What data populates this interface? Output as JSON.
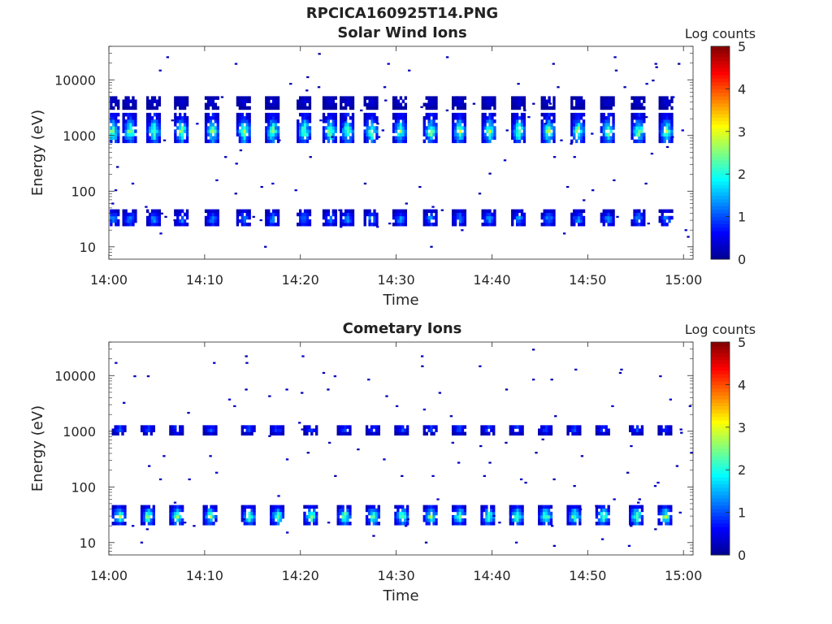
{
  "titles": {
    "file": "RPCICA160925T14.PNG",
    "panel1": "Solar Wind Ions",
    "panel2": "Cometary Ions"
  },
  "colors": {
    "background": "#ffffff",
    "axis": "#262626",
    "colormap": [
      "#00008f",
      "#0000ff",
      "#0080ff",
      "#00ffff",
      "#80ff80",
      "#ffff00",
      "#ff8000",
      "#ff0000",
      "#800000"
    ]
  },
  "chart_data": [
    {
      "type": "heatmap",
      "title": "Solar Wind Ions",
      "xlabel": "Time",
      "ylabel": "Energy (eV)",
      "xlim": [
        "14:00",
        "15:01"
      ],
      "ylim": [
        6,
        40000
      ],
      "yscale": "log",
      "xticks": [
        "14:00",
        "14:10",
        "14:20",
        "14:30",
        "14:40",
        "14:50",
        "15:00"
      ],
      "yticks": [
        "10",
        "100",
        "1000",
        "10000"
      ],
      "colorbar": {
        "label": "Log counts",
        "range": [
          0,
          5
        ],
        "ticks": [
          "0",
          "1",
          "2",
          "3",
          "4",
          "5"
        ]
      },
      "band_centers_minutes": [
        0.3,
        2.1,
        4.6,
        7.5,
        10.7,
        14.0,
        17.0,
        20.3,
        23.0,
        24.8,
        27.3,
        30.3,
        33.5,
        36.5,
        39.6,
        42.7,
        45.8,
        48.9,
        52.0,
        55.2,
        58.1
      ],
      "bands": [
        {
          "name": "main",
          "energy_range_eV": [
            700,
            2500
          ],
          "peak_energy_eV": 1200,
          "peak_log_counts": 2.8
        },
        {
          "name": "low",
          "energy_range_eV": [
            23,
            45
          ],
          "peak_energy_eV": 32,
          "peak_log_counts": 1.6
        },
        {
          "name": "upper",
          "energy_range_eV": [
            3000,
            5000
          ],
          "peak_energy_eV": 4000,
          "peak_log_counts": 0.5
        }
      ],
      "sparse_level_log_counts": 0.1
    },
    {
      "type": "heatmap",
      "title": "Cometary Ions",
      "xlabel": "Time",
      "ylabel": "Energy (eV)",
      "xlim": [
        "14:00",
        "15:01"
      ],
      "ylim": [
        6,
        40000
      ],
      "yscale": "log",
      "xticks": [
        "14:00",
        "14:10",
        "14:20",
        "14:30",
        "14:40",
        "14:50",
        "15:00"
      ],
      "yticks": [
        "10",
        "100",
        "1000",
        "10000"
      ],
      "colorbar": {
        "label": "Log counts",
        "range": [
          0,
          5
        ],
        "ticks": [
          "0",
          "1",
          "2",
          "3",
          "4",
          "5"
        ]
      },
      "band_centers_minutes": [
        1.0,
        4.0,
        7.0,
        10.5,
        14.5,
        17.5,
        21.0,
        24.5,
        27.5,
        30.5,
        33.5,
        36.5,
        39.5,
        42.5,
        45.5,
        48.5,
        51.5,
        55.0,
        58.0
      ],
      "bands": [
        {
          "name": "main",
          "energy_range_eV": [
            20,
            45
          ],
          "peak_energy_eV": 30,
          "peak_log_counts": 2.8
        },
        {
          "name": "upper",
          "energy_range_eV": [
            900,
            1300
          ],
          "peak_energy_eV": 1100,
          "peak_log_counts": 1.2
        }
      ],
      "sparse_level_log_counts": 0.1
    }
  ]
}
